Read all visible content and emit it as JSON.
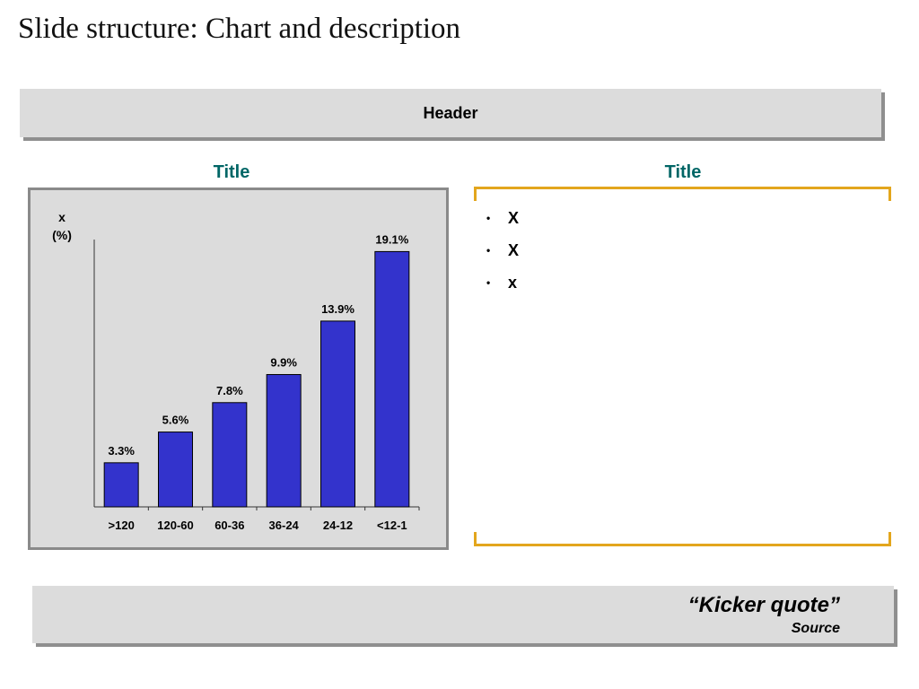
{
  "slide": {
    "title": "Slide structure: Chart and description"
  },
  "header": {
    "label": "Header"
  },
  "left_panel": {
    "title": "Title"
  },
  "right_panel": {
    "title": "Title",
    "bullets": [
      "X",
      "X",
      "x"
    ]
  },
  "kicker": {
    "quote": "“Kicker quote”",
    "source": "Source"
  },
  "colors": {
    "bar": "#3333cc",
    "title_teal": "#006666",
    "bracket": "#e3a61d",
    "panel_bg": "#dcdcdc"
  },
  "chart_data": {
    "type": "bar",
    "categories": [
      ">120",
      "120-60",
      "60-36",
      "36-24",
      "24-12",
      "<12-1"
    ],
    "values": [
      3.3,
      5.6,
      7.8,
      9.9,
      13.9,
      19.1
    ],
    "data_labels": [
      "3.3%",
      "5.6%",
      "7.8%",
      "9.9%",
      "13.9%",
      "19.1%"
    ],
    "ylabel_line1": "x",
    "ylabel_line2": "(%)",
    "ylim": [
      0,
      20
    ],
    "grid": false
  }
}
